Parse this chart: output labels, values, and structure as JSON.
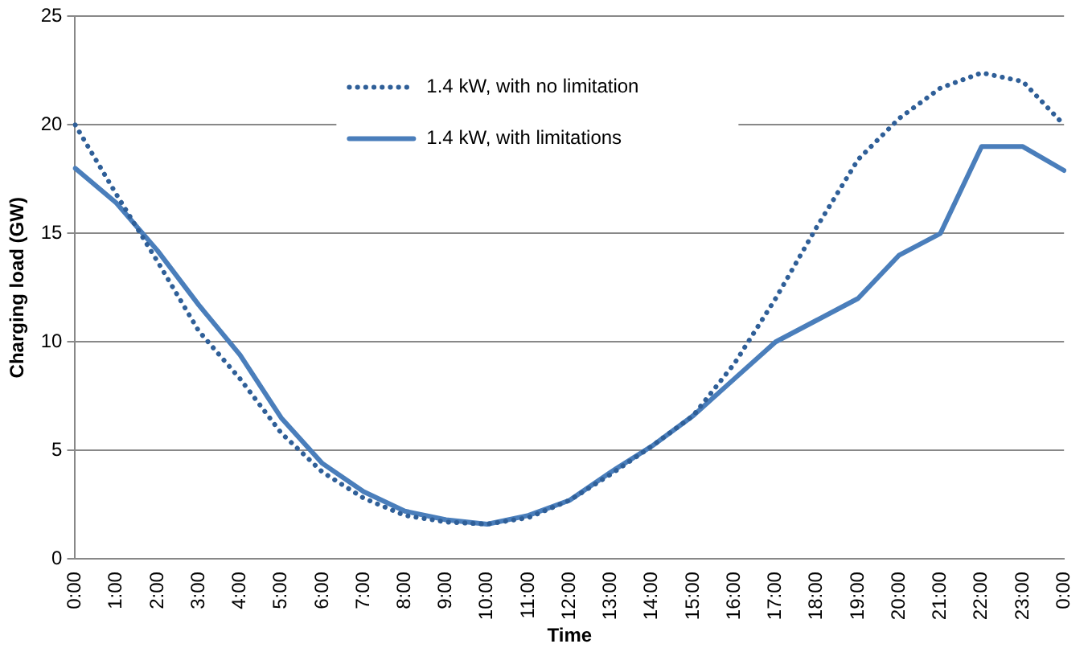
{
  "chart_data": {
    "type": "line",
    "xlabel": "Time",
    "ylabel": "Charging load (GW)",
    "categories": [
      "0:00",
      "1:00",
      "2:00",
      "3:00",
      "4:00",
      "5:00",
      "6:00",
      "7:00",
      "8:00",
      "9:00",
      "10:00",
      "11:00",
      "12:00",
      "13:00",
      "14:00",
      "15:00",
      "16:00",
      "17:00",
      "18:00",
      "19:00",
      "20:00",
      "21:00",
      "22:00",
      "23:00",
      "0:00"
    ],
    "series": [
      {
        "name": "1.4 kW, with no limitation",
        "color": "#2f5f98",
        "line_style": "dotted",
        "values": [
          20,
          16.8,
          13.7,
          10.5,
          8.3,
          5.8,
          4,
          2.8,
          2,
          1.7,
          1.6,
          1.9,
          2.7,
          3.9,
          5.2,
          6.6,
          9,
          12,
          15.3,
          18.4,
          20.3,
          21.7,
          22.4,
          22,
          20
        ]
      },
      {
        "name": "1.4 kW, with limitations",
        "color": "#4a7ebb",
        "line_style": "solid",
        "values": [
          18,
          16.4,
          14.2,
          11.7,
          9.4,
          6.5,
          4.4,
          3.1,
          2.2,
          1.8,
          1.6,
          2,
          2.7,
          4,
          5.2,
          6.6,
          8.3,
          10,
          11,
          12,
          14,
          15,
          19,
          19,
          17.9
        ]
      }
    ],
    "ylim": [
      0,
      25
    ],
    "yticks": [
      0,
      5,
      10,
      15,
      20,
      25
    ],
    "grid": "y",
    "legend": "top",
    "marker": "none"
  }
}
